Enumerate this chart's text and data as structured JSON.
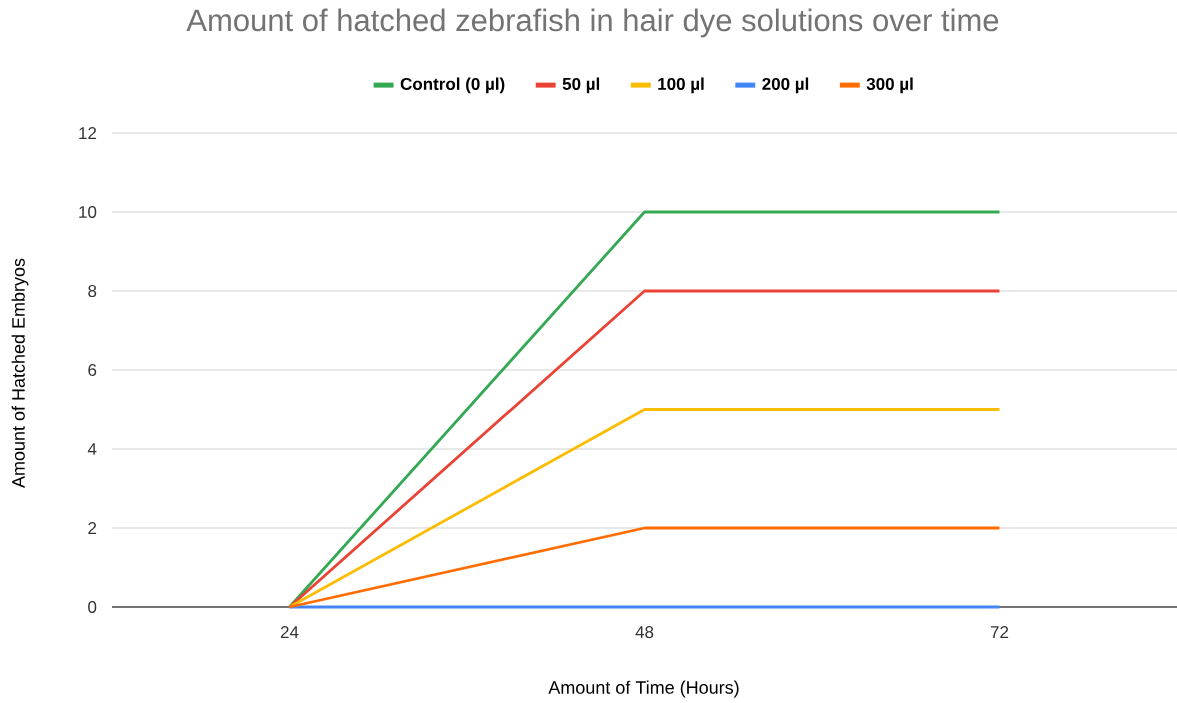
{
  "chart_data": {
    "type": "line",
    "title": "Amount of hatched zebrafish in hair dye solutions over time",
    "xlabel": "Amount of Time (Hours)",
    "ylabel": "Amount of Hatched Embryos",
    "categories": [
      "24",
      "48",
      "72"
    ],
    "series": [
      {
        "name": "Control (0 µl)",
        "color": "#34a853",
        "values": [
          0,
          10,
          10
        ]
      },
      {
        "name": "50 µl",
        "color": "#ea4335",
        "values": [
          0,
          8,
          8
        ]
      },
      {
        "name": "100 µl",
        "color": "#fbbc04",
        "values": [
          0,
          5,
          5
        ]
      },
      {
        "name": "200 µl",
        "color": "#4285f4",
        "values": [
          0,
          0,
          0
        ]
      },
      {
        "name": "300 µl",
        "color": "#ff6d01",
        "values": [
          0,
          2,
          2
        ]
      }
    ],
    "ylim": [
      0,
      12
    ],
    "yticks": [
      0,
      2,
      4,
      6,
      8,
      10,
      12
    ],
    "grid": "y",
    "legend": "top"
  }
}
